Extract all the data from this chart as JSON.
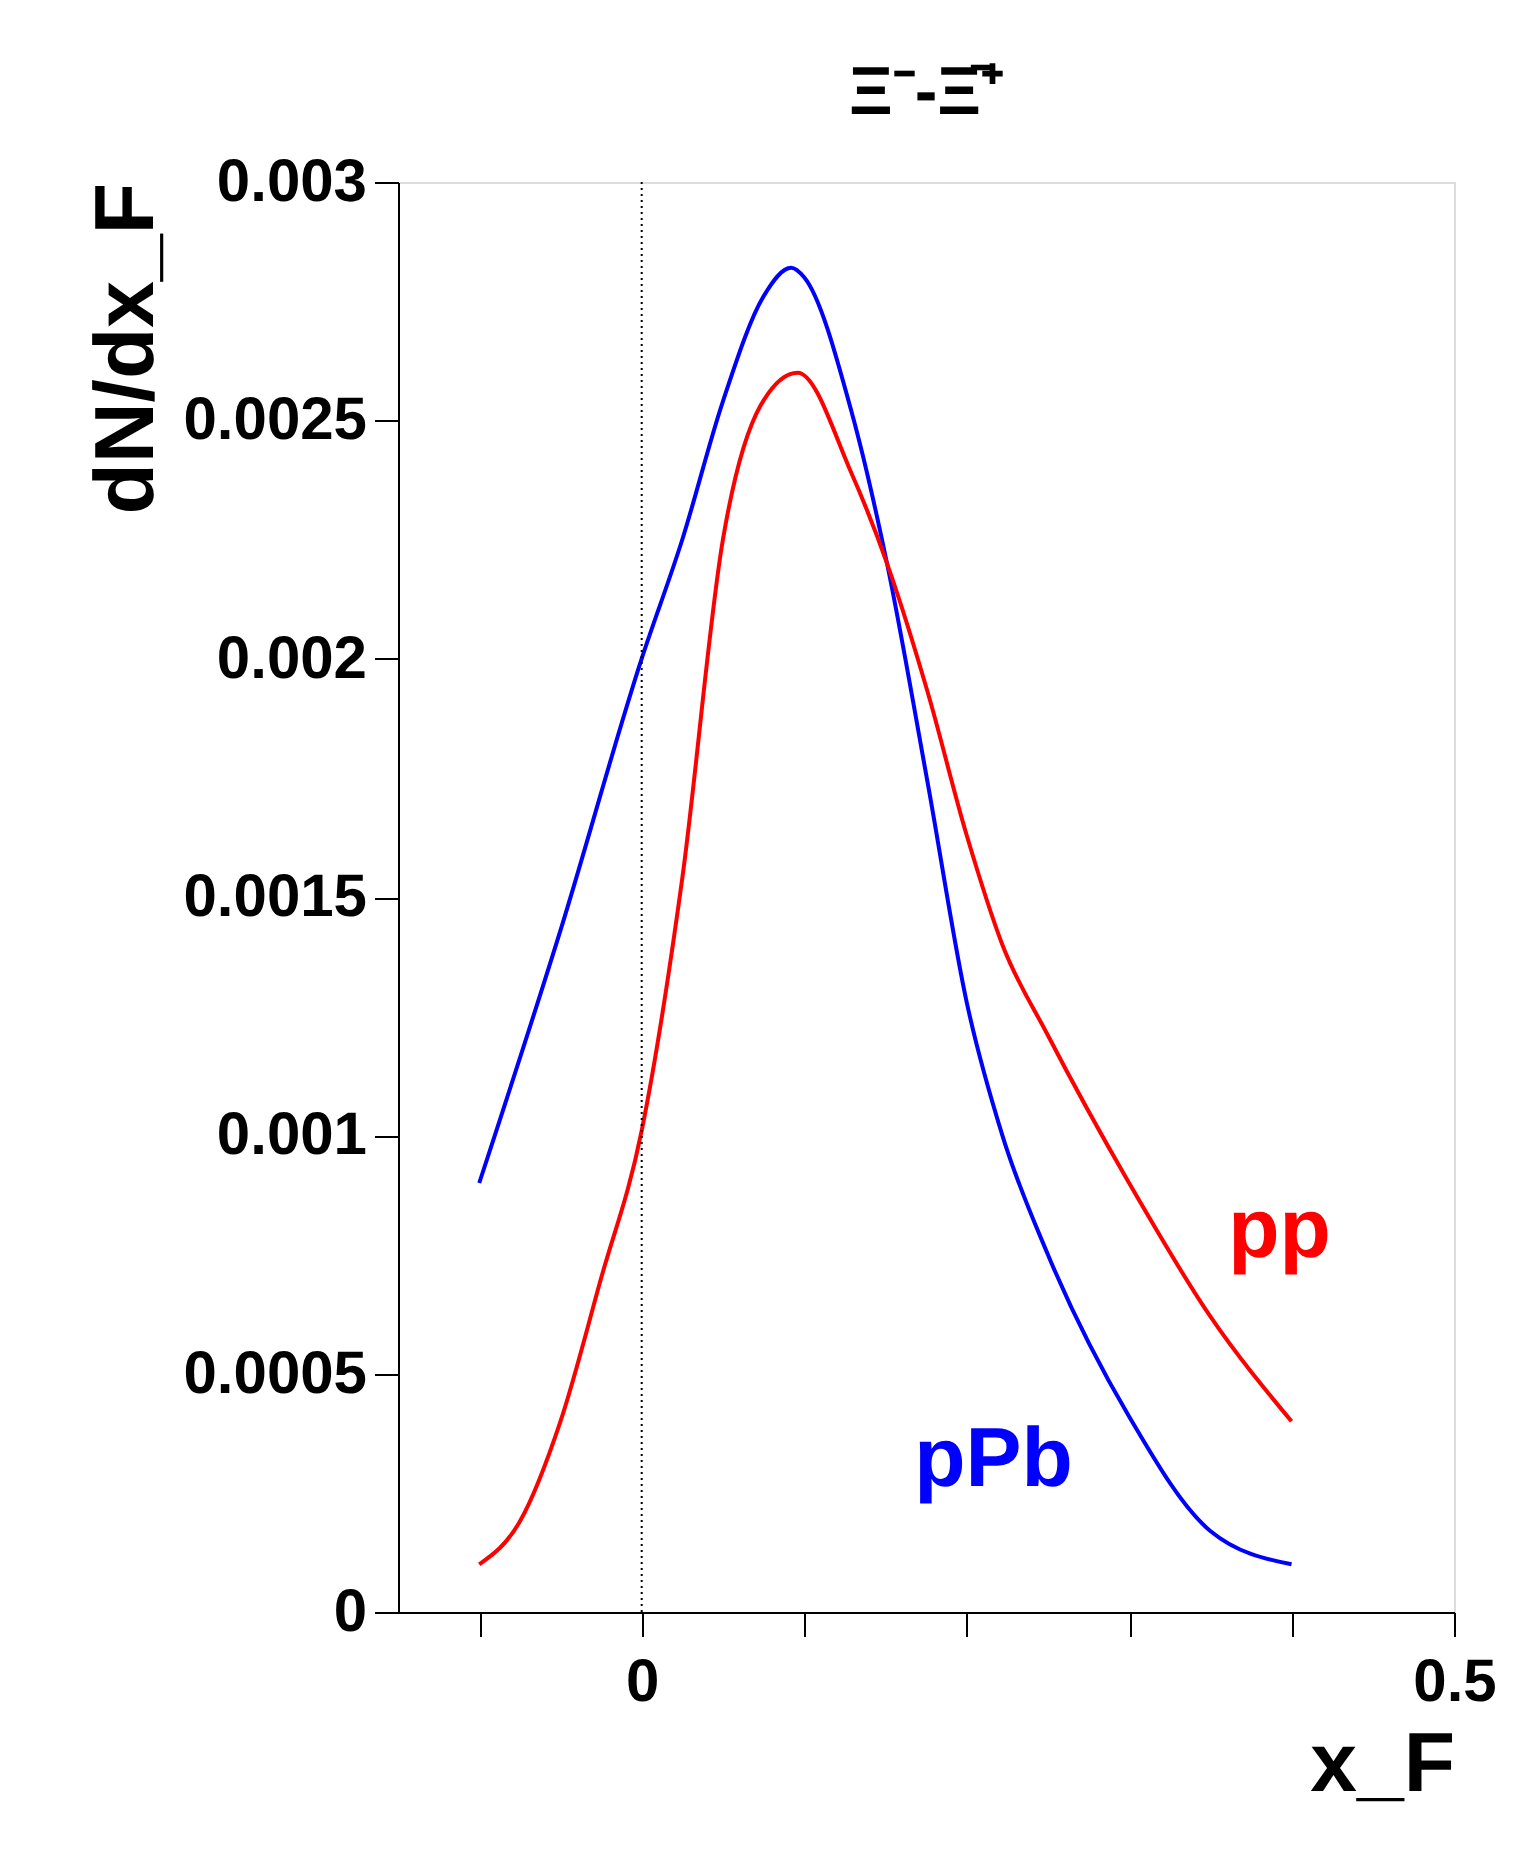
{
  "chart_data": {
    "type": "line",
    "title": "Ξ⁻-Ξ̄⁺",
    "xlabel": "x_F",
    "ylabel": "dN/dx_F",
    "xlim": [
      -0.15,
      0.5
    ],
    "xticks": [
      {
        "value": -0.1,
        "label": null
      },
      0,
      {
        "value": 0.1,
        "label": null
      },
      {
        "value": 0.2,
        "label": null
      },
      {
        "value": 0.3,
        "label": null
      },
      {
        "value": 0.4,
        "label": null
      },
      0.5
    ],
    "ylim": [
      0,
      0.003
    ],
    "yticks": [
      0,
      0.0005,
      0.001,
      0.0015,
      0.002,
      0.0025,
      0.003
    ],
    "grid": false,
    "legend": false,
    "marker": "none",
    "line_style": "solid",
    "ref_lines": [
      {
        "axis": "x",
        "value": 0,
        "color": "#000000",
        "line_style": "dotted"
      }
    ],
    "series": [
      {
        "name": "pPb",
        "color": "#0000ff",
        "x": [
          -0.1,
          -0.05,
          0,
          0.025,
          0.05,
          0.075,
          0.092,
          0.1,
          0.129,
          0.151,
          0.176,
          0.2,
          0.222,
          0.25,
          0.3,
          0.35,
          0.4
        ],
        "values": [
          0.0009,
          0.00143,
          0.002,
          0.00225,
          0.00254,
          0.00276,
          0.00282,
          0.0028,
          0.00252,
          0.0022,
          0.00174,
          0.00128,
          0.001,
          0.00075,
          0.00041,
          0.00017,
          0.0001
        ]
      },
      {
        "name": "pp",
        "color": "#ff0000",
        "x": [
          -0.1,
          -0.075,
          -0.05,
          -0.025,
          0,
          0.025,
          0.05,
          0.073,
          0.096,
          0.129,
          0.151,
          0.176,
          0.2,
          0.222,
          0.25,
          0.3,
          0.35,
          0.4
        ],
        "values": [
          0.0001,
          0.00019,
          0.0004,
          0.0007,
          0.00101,
          0.00154,
          0.00225,
          0.00253,
          0.0026,
          0.00239,
          0.0022,
          0.00193,
          0.00163,
          0.0014,
          0.00121,
          0.0009,
          0.00062,
          0.0004
        ]
      }
    ]
  }
}
